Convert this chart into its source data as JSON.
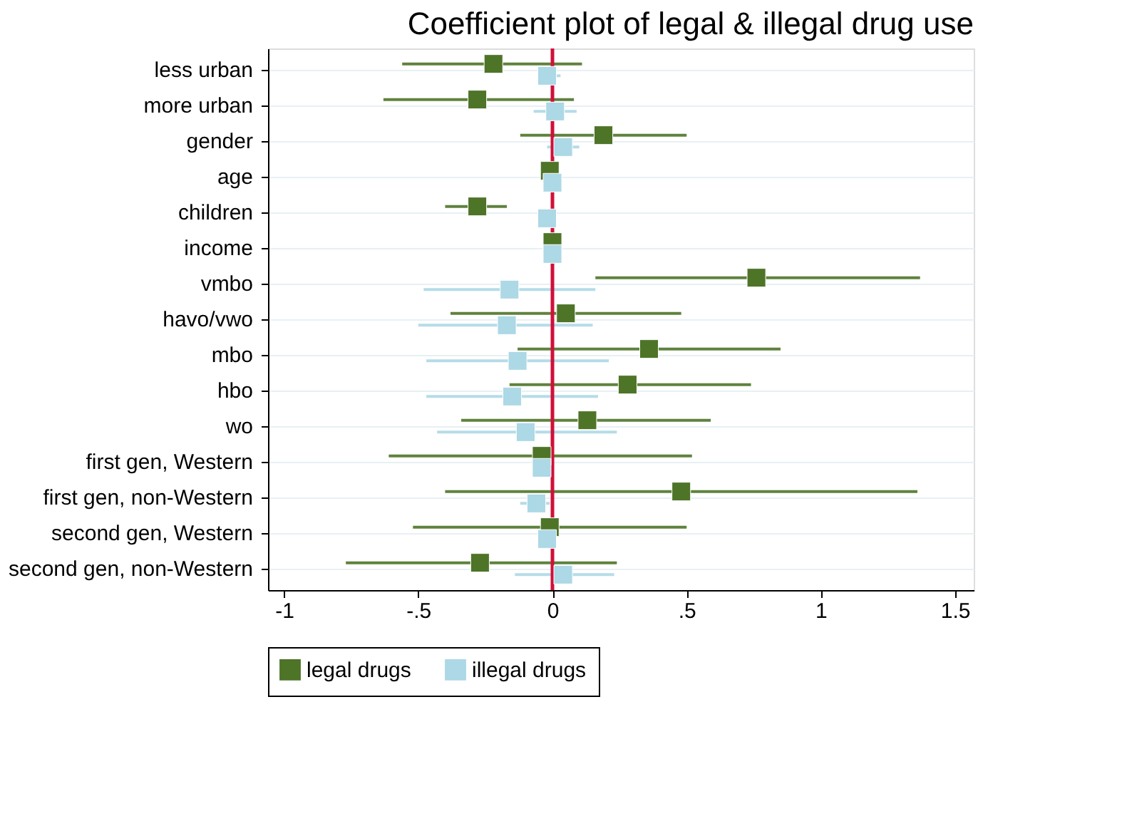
{
  "chart_data": {
    "type": "scatter",
    "orientation": "horizontal",
    "title": "Coefficient plot of legal & illegal drug use",
    "categories": [
      "less urban",
      "more urban",
      "gender",
      "age",
      "children",
      "income",
      "vmbo",
      "havo/vwo",
      "mbo",
      "hbo",
      "wo",
      "first gen, Western",
      "first gen, non-Western",
      "second gen, Western",
      "second gen, non-Western"
    ],
    "series": [
      {
        "name": "legal drugs",
        "color": "#4e7428",
        "values": [
          -0.22,
          -0.28,
          0.19,
          -0.01,
          -0.28,
          0.0,
          0.76,
          0.05,
          0.36,
          0.28,
          0.13,
          -0.04,
          0.48,
          -0.01,
          -0.27
        ],
        "errors": [
          [
            -0.56,
            0.11
          ],
          [
            -0.63,
            0.08
          ],
          [
            -0.12,
            0.5
          ],
          null,
          [
            -0.4,
            -0.17
          ],
          null,
          [
            0.16,
            1.37
          ],
          [
            -0.38,
            0.48
          ],
          [
            -0.13,
            0.85
          ],
          [
            -0.16,
            0.74
          ],
          [
            -0.34,
            0.59
          ],
          [
            -0.61,
            0.52
          ],
          [
            -0.4,
            1.36
          ],
          [
            -0.52,
            0.5
          ],
          [
            -0.77,
            0.24
          ]
        ]
      },
      {
        "name": "illegal drugs",
        "color": "#add8e6",
        "values": [
          -0.02,
          0.01,
          0.04,
          0.0,
          -0.02,
          0.0,
          -0.16,
          -0.17,
          -0.13,
          -0.15,
          -0.1,
          -0.04,
          -0.06,
          -0.02,
          0.04
        ],
        "errors": [
          [
            -0.05,
            0.03
          ],
          [
            -0.07,
            0.09
          ],
          [
            -0.02,
            0.1
          ],
          null,
          null,
          null,
          [
            -0.48,
            0.16
          ],
          [
            -0.5,
            0.15
          ],
          [
            -0.47,
            0.21
          ],
          [
            -0.47,
            0.17
          ],
          [
            -0.43,
            0.24
          ],
          null,
          [
            -0.12,
            -0.01
          ],
          null,
          [
            -0.14,
            0.23
          ]
        ]
      }
    ],
    "xlim": [
      -1.06,
      1.57
    ],
    "xticks": [
      {
        "value": -1,
        "label": "-1"
      },
      {
        "value": -0.5,
        "label": "-.5"
      },
      {
        "value": 0,
        "label": "0"
      },
      {
        "value": 0.5,
        "label": ".5"
      },
      {
        "value": 1,
        "label": "1"
      },
      {
        "value": 1.5,
        "label": "1.5"
      }
    ],
    "ref_lines": [
      {
        "axis": "x",
        "value": 0,
        "color": "#d0103a"
      }
    ],
    "grid": "y",
    "legend": "bottom",
    "marker": "square"
  }
}
